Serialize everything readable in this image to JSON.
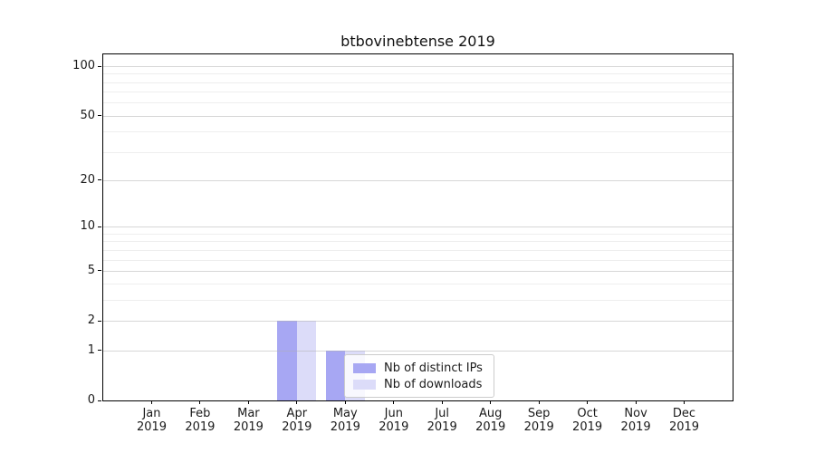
{
  "figure": {
    "background": "#ffffff"
  },
  "chart_data": {
    "type": "bar",
    "title": "btbovinebtense 2019",
    "xlabel": "",
    "ylabel": "",
    "categories": [
      "Jan",
      "Feb",
      "Mar",
      "Apr",
      "May",
      "Jun",
      "Jul",
      "Aug",
      "Sep",
      "Oct",
      "Nov",
      "Dec"
    ],
    "x_tick_year": "2019",
    "series": [
      {
        "name": "Nb of distinct IPs",
        "color": "#a7a7f3",
        "values": [
          0,
          0,
          0,
          2,
          1,
          0,
          0,
          0,
          0,
          0,
          0,
          0
        ]
      },
      {
        "name": "Nb of downloads",
        "color": "#dcdcf9",
        "values": [
          0,
          0,
          0,
          2,
          1,
          0,
          0,
          0,
          0,
          0,
          0,
          0
        ]
      }
    ],
    "y_scale": "log1p",
    "y_major_ticks": [
      0,
      1,
      2,
      5,
      10,
      20,
      50,
      100
    ],
    "y_minor_gridlines": [
      3,
      4,
      6,
      7,
      8,
      9,
      30,
      40,
      60,
      70,
      80,
      90
    ],
    "ylim": [
      0,
      118
    ],
    "grid": "both",
    "legend_position": "lower-center",
    "colors": {
      "major_grid": "rgba(176,176,176,0.5)",
      "minor_grid": "rgba(176,176,176,0.22)",
      "spine": "#000000",
      "text": "#1a1a1a"
    }
  }
}
